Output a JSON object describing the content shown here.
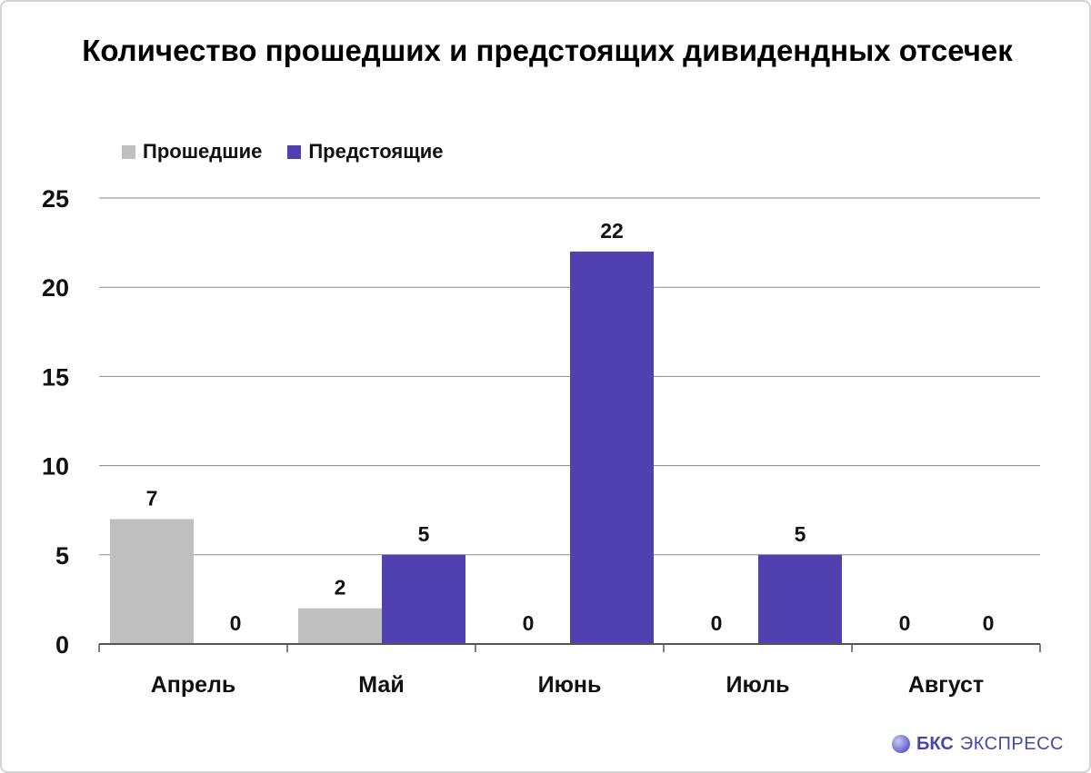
{
  "chart_data": {
    "type": "bar",
    "title": "Количество прошедших и предстоящих дивидендных отсечек",
    "categories": [
      "Апрель",
      "Май",
      "Июнь",
      "Июль",
      "Август"
    ],
    "series": [
      {
        "name": "Прошедшие",
        "color": "#bfbfbf",
        "values": [
          7,
          2,
          0,
          0,
          0
        ]
      },
      {
        "name": "Предстоящие",
        "color": "#5040b0",
        "values": [
          0,
          5,
          22,
          5,
          0
        ]
      }
    ],
    "ylim": [
      0,
      25
    ],
    "yticks": [
      "0",
      "5",
      "10",
      "15",
      "20",
      "25"
    ],
    "grid": true,
    "legend_position": "top-left",
    "data_labels": true
  },
  "brand": {
    "logo_icon": "bks-sphere-icon",
    "name_bold": "БКС",
    "name_rest": "ЭКСПРЕСС",
    "color": "#4a46a8"
  }
}
